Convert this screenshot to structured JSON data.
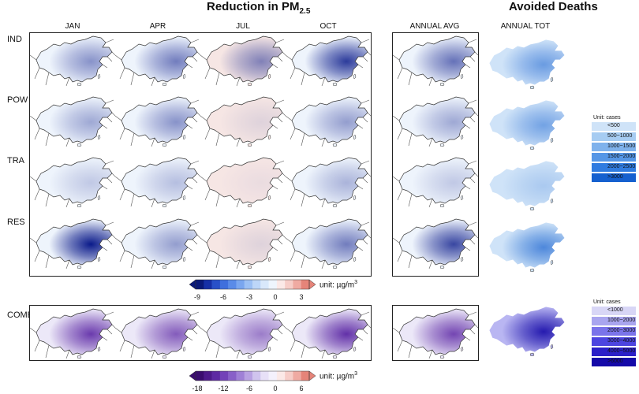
{
  "titles": {
    "reduction_main": "Reduction in PM",
    "reduction_sub": "2.5",
    "deaths": "Avoided Deaths"
  },
  "columns": [
    "JAN",
    "APR",
    "JUL",
    "OCT"
  ],
  "annual_avg_label": "ANNUAL AVG",
  "annual_tot_label": "ANNUAL TOT",
  "rows": [
    "IND",
    "POW",
    "TRA",
    "RES"
  ],
  "comb_label": "COMB",
  "colorbar_top": {
    "ticks": [
      "-9",
      "-6",
      "-3",
      "0",
      "3"
    ],
    "unit": "unit: µg/m",
    "unit_sup": "3",
    "colors": [
      "#0a1a78",
      "#1630a6",
      "#2950c8",
      "#3f6fdd",
      "#5a8be8",
      "#7aa6ef",
      "#9cc0f4",
      "#bdd6f8",
      "#d9e8fb",
      "#eef5fd",
      "#fbe9e7",
      "#f6cdc8",
      "#efaaa2",
      "#e58479"
    ]
  },
  "colorbar_bottom": {
    "ticks": [
      "-18",
      "-12",
      "-6",
      "0",
      "6"
    ],
    "unit": "unit: µg/m",
    "unit_sup": "3",
    "colors": [
      "#3a0d6e",
      "#4d1a8a",
      "#5e2aa3",
      "#7342b8",
      "#8860c8",
      "#9f80d6",
      "#b8a1e2",
      "#d0c4ee",
      "#e7e0f7",
      "#f4f1fc",
      "#fbe9e7",
      "#f6cdc8",
      "#efaaa2",
      "#e58479"
    ]
  },
  "legend_top": {
    "title": "Unit: cases",
    "items": [
      {
        "label": "<500",
        "color": "#cfe3f8"
      },
      {
        "label": "500~1000",
        "color": "#a6ccf2"
      },
      {
        "label": "1000~1500",
        "color": "#7fb2ec"
      },
      {
        "label": "1500~2000",
        "color": "#5596e6"
      },
      {
        "label": "2000~2500",
        "color": "#2f7be0"
      },
      {
        "label": ">3000",
        "color": "#1560cf"
      }
    ]
  },
  "legend_bottom": {
    "title": "Unit: cases",
    "items": [
      {
        "label": "<1000",
        "color": "#d8d6f6"
      },
      {
        "label": "1000~2000",
        "color": "#a9a5ef"
      },
      {
        "label": "2000~3000",
        "color": "#7a73ea"
      },
      {
        "label": "3000~4000",
        "color": "#4c44e0"
      },
      {
        "label": "4000~5000",
        "color": "#2a1fc8"
      },
      {
        "label": ">6000",
        "color": "#1409a8"
      }
    ]
  },
  "intensity": {
    "IND": [
      0.45,
      0.55,
      0.5,
      0.85,
      0.6,
      0.55
    ],
    "POW": [
      0.35,
      0.45,
      0.1,
      0.4,
      0.35,
      0.5
    ],
    "TRA": [
      0.2,
      0.25,
      0.05,
      0.3,
      0.2,
      0.2
    ],
    "RES": [
      1.0,
      0.4,
      0.1,
      0.55,
      0.8,
      0.7
    ],
    "COMB": [
      0.8,
      0.65,
      0.5,
      0.85,
      0.75,
      0.9
    ]
  },
  "colors": {
    "blue_base": "#eef4fc",
    "blue_dark": "#0a1a8a",
    "red_tint": "#f6e6e4",
    "purple_base": "#ece8f8",
    "purple_dark": "#4a0f9a",
    "tot_blue": "#cfe3f8",
    "tot_blue_dark": "#1560cf",
    "tot_purple": "#b9b6f2",
    "tot_purple_dark": "#1409a8"
  }
}
